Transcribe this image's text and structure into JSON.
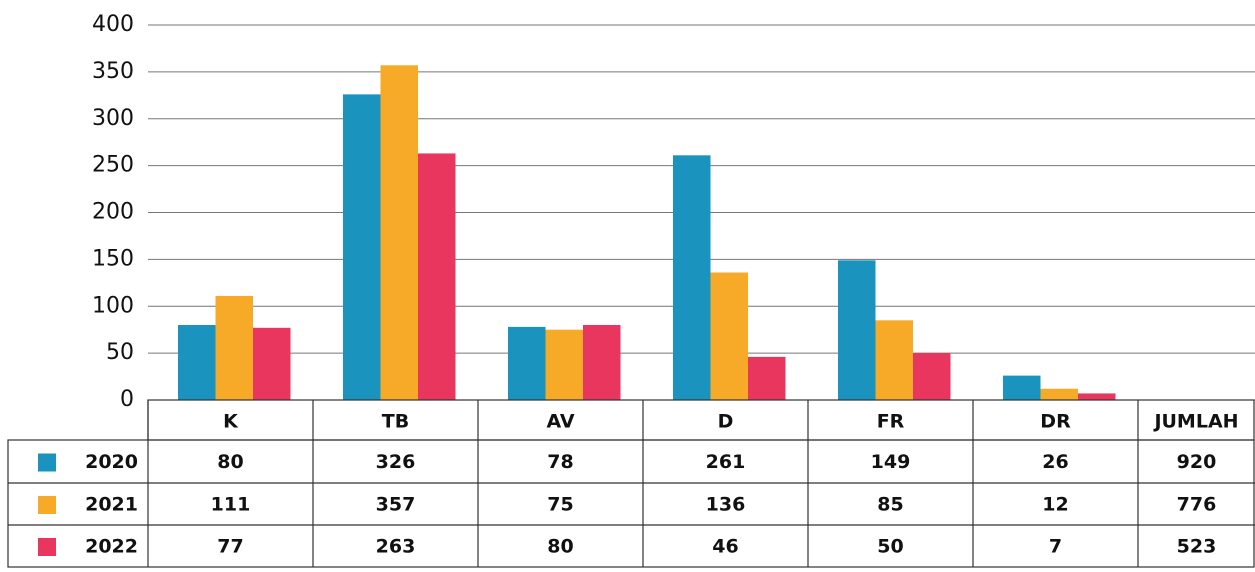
{
  "chart_data": {
    "type": "bar",
    "categories": [
      "K",
      "TB",
      "AV",
      "D",
      "FR",
      "DR"
    ],
    "total_label": "JUMLAH",
    "series": [
      {
        "name": "2020",
        "color": "#1a93be",
        "values": [
          80,
          326,
          78,
          261,
          149,
          26
        ],
        "total": 920
      },
      {
        "name": "2021",
        "color": "#f7a928",
        "values": [
          111,
          357,
          75,
          136,
          85,
          12
        ],
        "total": 776
      },
      {
        "name": "2022",
        "color": "#e8365f",
        "values": [
          77,
          263,
          80,
          46,
          50,
          7
        ],
        "total": 523
      }
    ],
    "ylim": [
      0,
      400
    ],
    "yticks": [
      0,
      50,
      100,
      150,
      200,
      250,
      300,
      350,
      400
    ],
    "grid": true
  }
}
